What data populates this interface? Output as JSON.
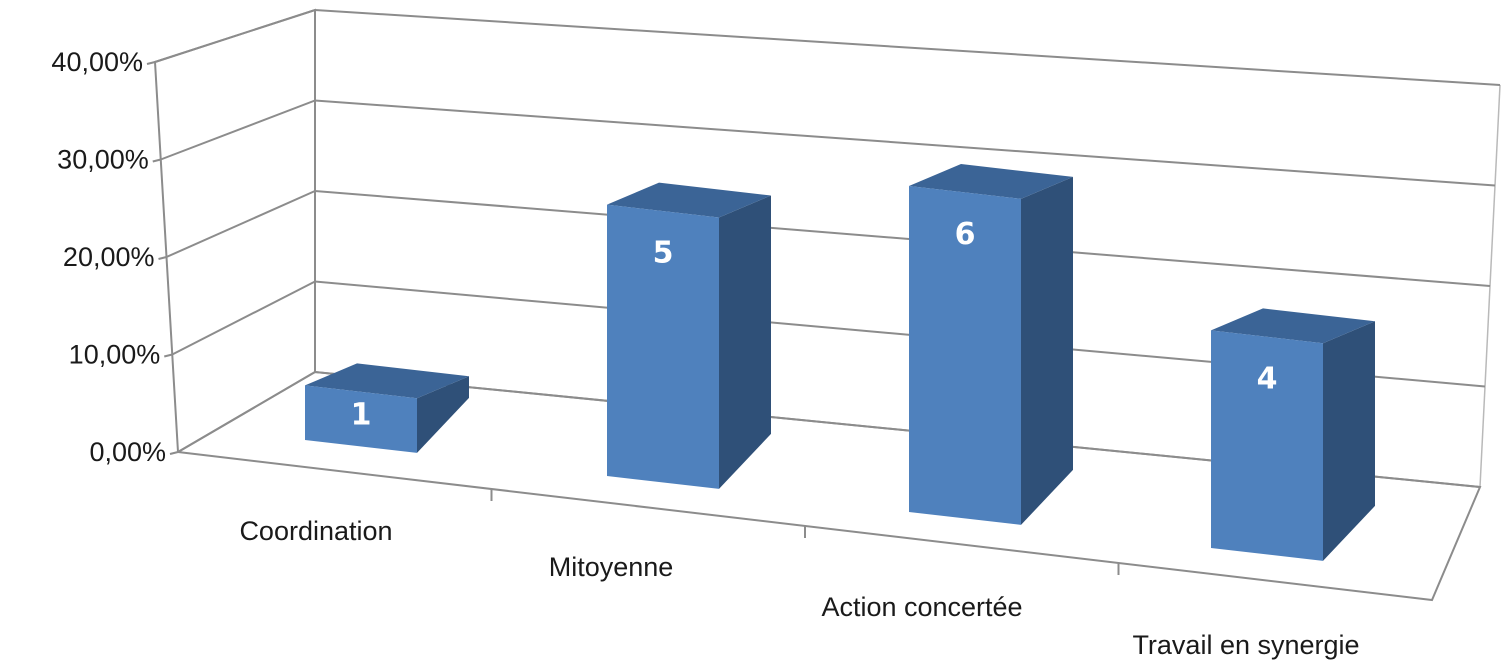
{
  "chart_data": {
    "type": "bar",
    "style": "3d-column",
    "categories": [
      "Coordination",
      "Mitoyenne",
      "Action concertée",
      "Travail en synergie"
    ],
    "values": [
      0.067,
      0.333,
      0.4,
      0.267
    ],
    "data_labels": [
      "1",
      "5",
      "6",
      "4"
    ],
    "y_ticks": [
      "0,00%",
      "10,00%",
      "20,00%",
      "30,00%",
      "40,00%"
    ],
    "ylim": [
      0,
      0.4
    ],
    "grid": true,
    "legend": "none",
    "title": "",
    "xlabel": "",
    "ylabel": "",
    "colors": {
      "front": "#4f81bd",
      "top": "#3b6496",
      "side": "#2f5078",
      "grid": "#8c8c8c",
      "text": "#1a1a1a"
    }
  }
}
